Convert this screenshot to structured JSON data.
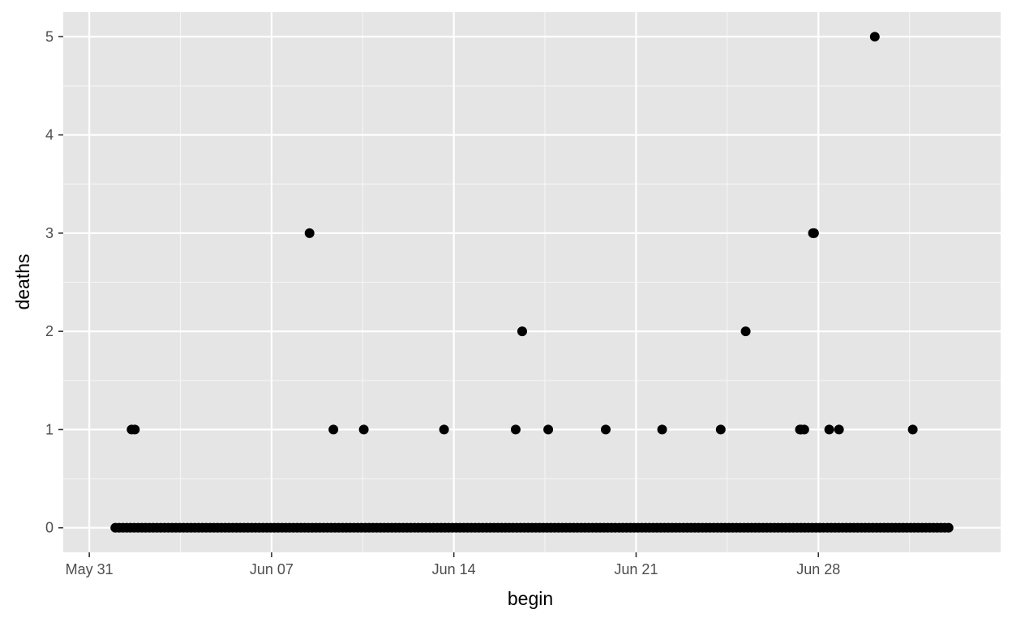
{
  "chart_data": {
    "type": "scatter",
    "xlabel": "begin",
    "ylabel": "deaths",
    "x_axis": {
      "kind": "date",
      "range": [
        "2020-05-30",
        "2020-07-05"
      ],
      "ticks": [
        "2020-05-31",
        "2020-06-07",
        "2020-06-14",
        "2020-06-21",
        "2020-06-28"
      ],
      "tick_labels": [
        "May 31",
        "Jun 07",
        "Jun 14",
        "Jun 21",
        "Jun 28"
      ]
    },
    "y_axis": {
      "range": [
        -0.25,
        5.25
      ],
      "ticks": [
        0,
        1,
        2,
        3,
        4,
        5
      ],
      "tick_labels": [
        "0",
        "1",
        "2",
        "3",
        "4",
        "5"
      ]
    },
    "grid": true,
    "background": "#e5e5e5",
    "point_color": "#000000",
    "zero_band": {
      "y": 0,
      "from": "2020-06-01",
      "to": "2020-07-03"
    },
    "series": [
      {
        "points": [
          {
            "x": "2020-06-01 15:00",
            "y": 1
          },
          {
            "x": "2020-06-01 18:00",
            "y": 1
          },
          {
            "x": "2020-06-08 11:00",
            "y": 3
          },
          {
            "x": "2020-06-09 09:00",
            "y": 1
          },
          {
            "x": "2020-06-10 13:00",
            "y": 1
          },
          {
            "x": "2020-06-13 15:00",
            "y": 1
          },
          {
            "x": "2020-06-16 09:00",
            "y": 1
          },
          {
            "x": "2020-06-16 15:00",
            "y": 2
          },
          {
            "x": "2020-06-17 15:00",
            "y": 1
          },
          {
            "x": "2020-06-19 20:00",
            "y": 1
          },
          {
            "x": "2020-06-22 00:00",
            "y": 1
          },
          {
            "x": "2020-06-24 06:00",
            "y": 1
          },
          {
            "x": "2020-06-25 05:00",
            "y": 2
          },
          {
            "x": "2020-06-27 07:00",
            "y": 1
          },
          {
            "x": "2020-06-27 08:00",
            "y": 1
          },
          {
            "x": "2020-06-27 11:00",
            "y": 1
          },
          {
            "x": "2020-06-27 19:00",
            "y": 3
          },
          {
            "x": "2020-06-27 20:00",
            "y": 3
          },
          {
            "x": "2020-06-28 10:00",
            "y": 1
          },
          {
            "x": "2020-06-28 19:00",
            "y": 1
          },
          {
            "x": "2020-06-30 04:00",
            "y": 5
          },
          {
            "x": "2020-07-01 15:00",
            "y": 1
          }
        ]
      }
    ]
  }
}
